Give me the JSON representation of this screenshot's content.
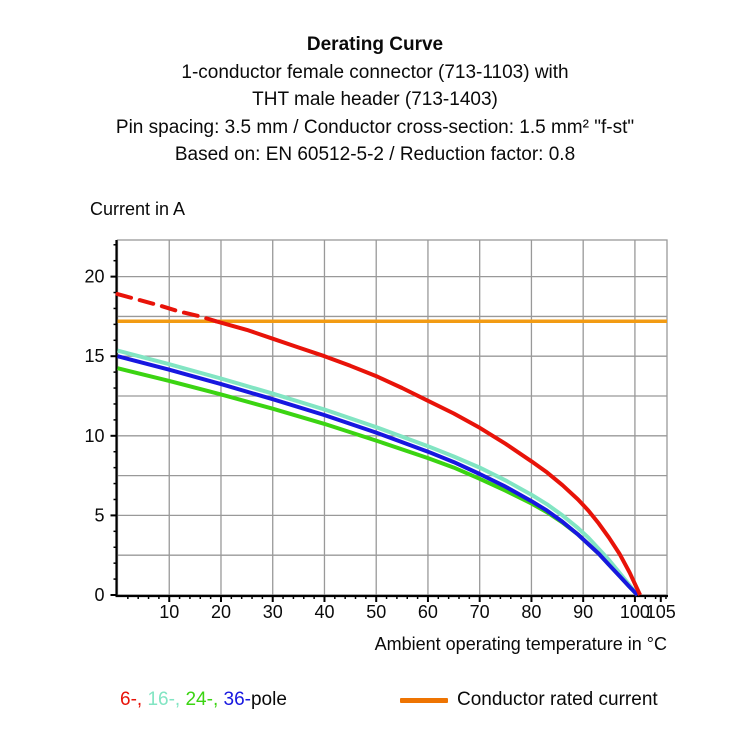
{
  "header": {
    "title": "Derating Curve",
    "subtitle_lines": [
      "1-conductor female connector (713-1103) with",
      "THT male header (713-1403)",
      "Pin spacing: 3.5 mm / Conductor cross-section: 1.5 mm² \"f-st\"",
      "Based on: EN 60512-5-2 / Reduction factor: 0.8"
    ]
  },
  "colors": {
    "red_6pole": "#e81309",
    "turquoise_16pole": "#82e5c3",
    "green_24pole": "#3bd412",
    "blue_36pole": "#1717e0",
    "orange_line": "#f29b13",
    "orange_swatch": "#ee7402",
    "grid": "#999999",
    "axis": "#000000"
  },
  "legend": {
    "pole_items": [
      {
        "text": "6-, ",
        "color": "#e81309"
      },
      {
        "text": "16-, ",
        "color": "#82e5c3"
      },
      {
        "text": "24-, ",
        "color": "#3bd412"
      },
      {
        "text": "36-",
        "color": "#1717e0"
      },
      {
        "text": "pole",
        "color": "#0a0a0a"
      }
    ],
    "rated_label": "Conductor rated current"
  },
  "chart_data": {
    "type": "line",
    "title": "Derating Curve",
    "xlabel": "Ambient operating temperature in °C",
    "ylabel": "Current in A",
    "xlim": [
      0,
      106.2
    ],
    "ylim": [
      0,
      22.3
    ],
    "grid": true,
    "x_gridlines": [
      10,
      20,
      30,
      40,
      50,
      60,
      70,
      80,
      90,
      100
    ],
    "y_gridlines": [
      2.5,
      5,
      7.5,
      10,
      12.5,
      15,
      17.5,
      20
    ],
    "x_tick_labels": [
      10,
      20,
      30,
      40,
      50,
      60,
      70,
      80,
      90,
      100,
      105
    ],
    "y_tick_labels": [
      0,
      5,
      10,
      15,
      20
    ],
    "x_minor_tick_every": 2,
    "y_minor_tick_every": 1,
    "rated_current": {
      "label": "Conductor rated current",
      "value": 17.2,
      "color": "#f29b13",
      "x_range": [
        0,
        106.2
      ]
    },
    "series": [
      {
        "name": "24-pole",
        "color": "#3bd412",
        "points": [
          [
            0,
            14.25
          ],
          [
            10,
            13.45
          ],
          [
            20,
            12.6
          ],
          [
            30,
            11.7
          ],
          [
            40,
            10.75
          ],
          [
            50,
            9.7
          ],
          [
            60,
            8.6
          ],
          [
            65,
            8.0
          ],
          [
            70,
            7.3
          ],
          [
            75,
            6.55
          ],
          [
            80,
            5.75
          ],
          [
            83,
            5.2
          ],
          [
            86,
            4.55
          ],
          [
            89,
            3.8
          ],
          [
            91,
            3.2
          ],
          [
            93,
            2.6
          ],
          [
            95,
            1.9
          ],
          [
            97,
            1.2
          ],
          [
            99,
            0.5
          ],
          [
            100.5,
            0
          ]
        ]
      },
      {
        "name": "16-pole",
        "color": "#82e5c3",
        "points": [
          [
            0,
            15.35
          ],
          [
            10,
            14.5
          ],
          [
            20,
            13.6
          ],
          [
            30,
            12.65
          ],
          [
            40,
            11.65
          ],
          [
            50,
            10.55
          ],
          [
            60,
            9.35
          ],
          [
            65,
            8.7
          ],
          [
            70,
            8.0
          ],
          [
            75,
            7.2
          ],
          [
            80,
            6.3
          ],
          [
            83,
            5.7
          ],
          [
            86,
            5.0
          ],
          [
            89,
            4.2
          ],
          [
            91,
            3.6
          ],
          [
            93,
            2.9
          ],
          [
            95,
            2.2
          ],
          [
            97,
            1.4
          ],
          [
            99,
            0.6
          ],
          [
            100.5,
            0
          ]
        ]
      },
      {
        "name": "36-pole",
        "color": "#1717e0",
        "points": [
          [
            0,
            15.0
          ],
          [
            10,
            14.15
          ],
          [
            20,
            13.25
          ],
          [
            30,
            12.3
          ],
          [
            40,
            11.3
          ],
          [
            50,
            10.2
          ],
          [
            60,
            9.0
          ],
          [
            65,
            8.35
          ],
          [
            70,
            7.6
          ],
          [
            75,
            6.8
          ],
          [
            80,
            5.9
          ],
          [
            83,
            5.3
          ],
          [
            86,
            4.6
          ],
          [
            89,
            3.8
          ],
          [
            91,
            3.2
          ],
          [
            93,
            2.6
          ],
          [
            95,
            1.9
          ],
          [
            97,
            1.2
          ],
          [
            99,
            0.5
          ],
          [
            100.5,
            0
          ]
        ]
      },
      {
        "name": "6-pole",
        "color": "#e81309",
        "dash_points": [
          [
            0,
            18.9
          ],
          [
            4,
            18.55
          ],
          [
            8,
            18.2
          ],
          [
            12,
            17.8
          ],
          [
            16,
            17.5
          ],
          [
            19,
            17.2
          ]
        ],
        "points": [
          [
            19,
            17.2
          ],
          [
            25,
            16.65
          ],
          [
            30,
            16.1
          ],
          [
            35,
            15.55
          ],
          [
            40,
            15.0
          ],
          [
            45,
            14.4
          ],
          [
            50,
            13.75
          ],
          [
            55,
            13.0
          ],
          [
            60,
            12.2
          ],
          [
            65,
            11.4
          ],
          [
            70,
            10.5
          ],
          [
            75,
            9.5
          ],
          [
            80,
            8.4
          ],
          [
            83,
            7.7
          ],
          [
            86,
            6.9
          ],
          [
            89,
            6.0
          ],
          [
            91,
            5.3
          ],
          [
            93,
            4.5
          ],
          [
            95,
            3.6
          ],
          [
            97,
            2.6
          ],
          [
            99,
            1.4
          ],
          [
            101,
            0
          ]
        ]
      }
    ]
  }
}
